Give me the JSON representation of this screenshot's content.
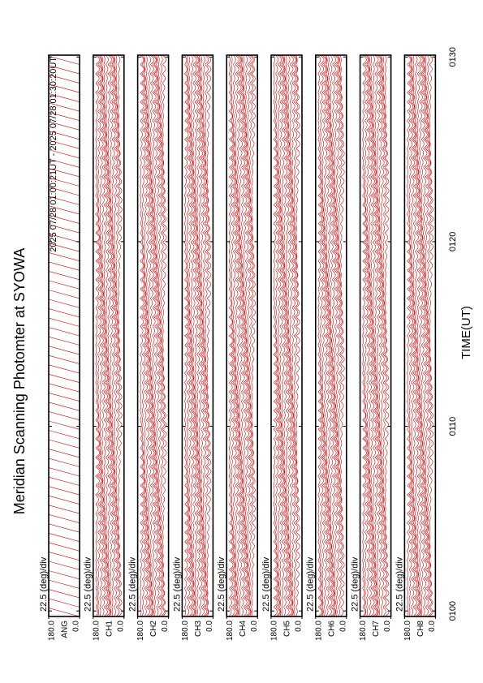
{
  "chart_data": {
    "type": "line",
    "title": "Meridian Scanning Photomter at SYOWA",
    "subtitle": "2025 07/28 01:00:21UT - 2025 07/28 01:30:20UT",
    "xlabel": "TIME(UT)",
    "xlim": [
      -0.3,
      30.1
    ],
    "xticks": [
      {
        "value": 0,
        "label": "0100"
      },
      {
        "value": 10,
        "label": "0110"
      },
      {
        "value": 20,
        "label": "0120"
      },
      {
        "value": 30,
        "label": "0130"
      }
    ],
    "color": "#d40000",
    "panels": [
      {
        "channel": "ANG",
        "scale_label": "22.5 (deg)/div",
        "ylim": [
          0,
          180
        ],
        "yticks": [
          {
            "value": 180,
            "label": "180.0"
          },
          {
            "value": 0,
            "label": "0.0"
          }
        ]
      },
      {
        "channel": "CH1",
        "scale_label": "22.5 (deg)/div",
        "ylim": [
          0,
          180
        ],
        "yticks": [
          {
            "value": 180,
            "label": "180.0"
          },
          {
            "value": 0,
            "label": "0.0"
          }
        ]
      },
      {
        "channel": "CH2",
        "scale_label": "22.5 (deg)/div",
        "ylim": [
          0,
          180
        ],
        "yticks": [
          {
            "value": 180,
            "label": "180.0"
          },
          {
            "value": 0,
            "label": "0.0"
          }
        ]
      },
      {
        "channel": "CH3",
        "scale_label": "22.5 (deg)/div",
        "ylim": [
          0,
          180
        ],
        "yticks": [
          {
            "value": 180,
            "label": "180.0"
          },
          {
            "value": 0,
            "label": "0.0"
          }
        ]
      },
      {
        "channel": "CH4",
        "scale_label": "22.5 (deg)/div",
        "ylim": [
          0,
          180
        ],
        "yticks": [
          {
            "value": 180,
            "label": "180.0"
          },
          {
            "value": 0,
            "label": "0.0"
          }
        ]
      },
      {
        "channel": "CH5",
        "scale_label": "22.5 (deg)/div",
        "ylim": [
          0,
          180
        ],
        "yticks": [
          {
            "value": 180,
            "label": "180.0"
          },
          {
            "value": 0,
            "label": "0.0"
          }
        ]
      },
      {
        "channel": "CH6",
        "scale_label": "22.5 (deg)/div",
        "ylim": [
          0,
          180
        ],
        "yticks": [
          {
            "value": 180,
            "label": "180.0"
          },
          {
            "value": 0,
            "label": "0.0"
          }
        ]
      },
      {
        "channel": "CH7",
        "scale_label": "22.5 (deg)/div",
        "ylim": [
          0,
          180
        ],
        "yticks": [
          {
            "value": 180,
            "label": "180.0"
          },
          {
            "value": 0,
            "label": "0.0"
          }
        ]
      },
      {
        "channel": "CH8",
        "scale_label": "22.5 (deg)/div",
        "ylim": [
          0,
          180
        ],
        "yticks": [
          {
            "value": 180,
            "label": "180.0"
          },
          {
            "value": 0,
            "label": "0.0"
          }
        ]
      }
    ]
  }
}
